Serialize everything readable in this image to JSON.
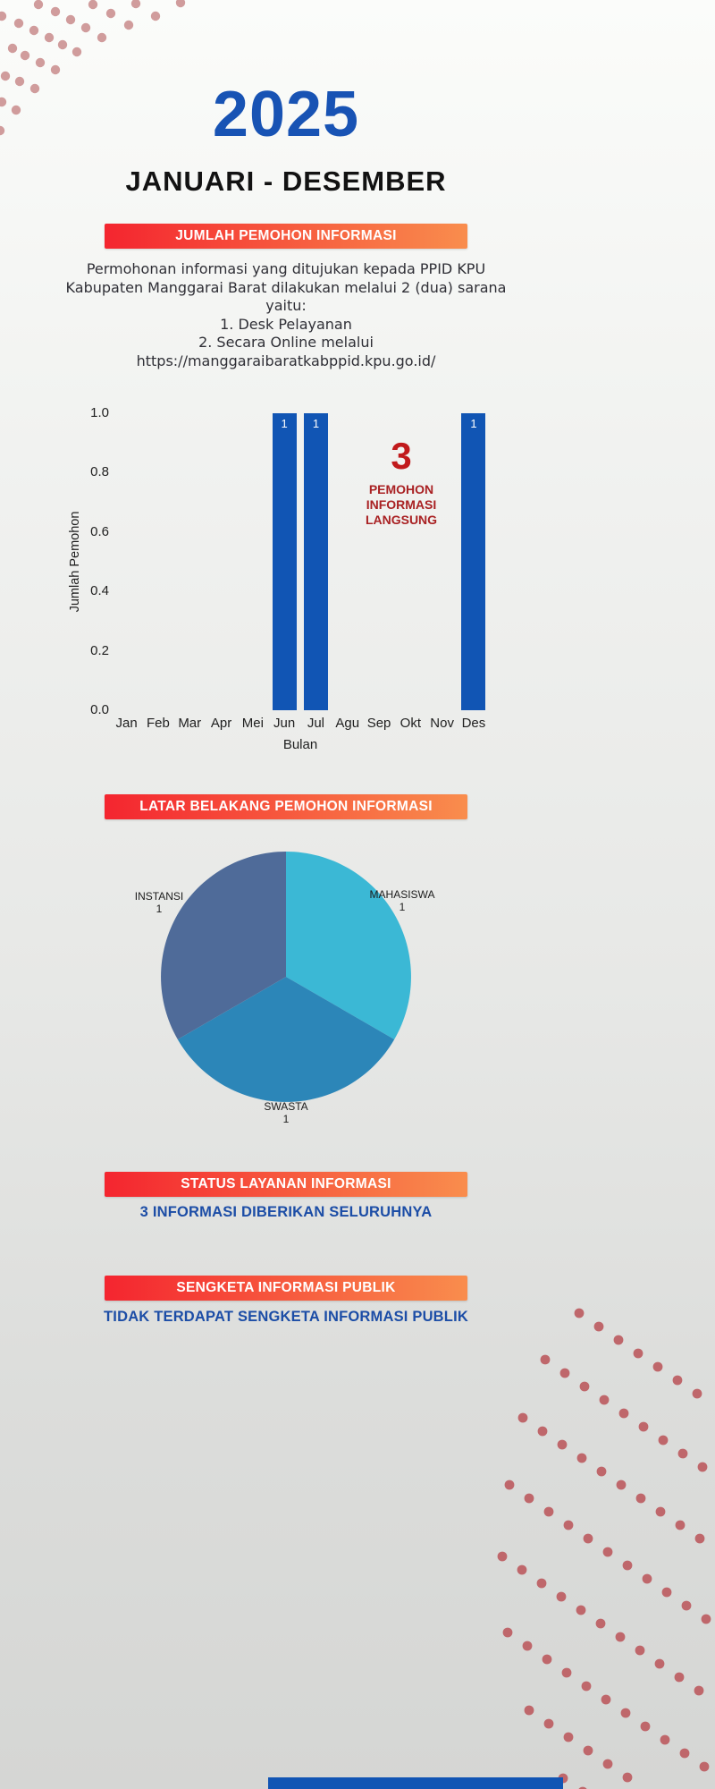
{
  "title": {
    "year": "2025",
    "period": "JANUARI - DESEMBER"
  },
  "colors": {
    "year_blue": "#1853b4",
    "banner_gradient_left": "#f4252f",
    "banner_gradient_right": "#f98d4d",
    "bar_blue": "#1155b4",
    "accent_red": "#c11a1c",
    "dark_red": "#a92123",
    "status_blue": "#1c4da6",
    "dot_pink_top": "#d09c9c",
    "dot_pink_bottom": "#bf676b"
  },
  "sections": {
    "jumlah_pemohon": {
      "banner": "JUMLAH PEMOHON INFORMASI",
      "description_lines": [
        "Permohonan informasi yang ditujukan kepada PPID KPU",
        "Kabupaten Manggarai Barat dilakukan melalui 2 (dua) sarana",
        "yaitu:",
        "1. Desk Pelayanan",
        "2. Secara Online melalui",
        "https://manggaraibaratkabppid.kpu.go.id/"
      ]
    },
    "latar_belakang": {
      "banner": "LATAR BELAKANG PEMOHON INFORMASI"
    },
    "status_layanan": {
      "banner": "STATUS LAYANAN INFORMASI",
      "status_text": "3 INFORMASI DIBERIKAN SELURUHNYA"
    },
    "sengketa": {
      "banner": "SENGKETA INFORMASI PUBLIK",
      "status_text": "TIDAK TERDAPAT SENGKETA INFORMASI PUBLIK"
    }
  },
  "chart_data": [
    {
      "type": "bar",
      "categories": [
        "Jan",
        "Feb",
        "Mar",
        "Apr",
        "Mei",
        "Jun",
        "Jul",
        "Agu",
        "Sep",
        "Okt",
        "Nov",
        "Des"
      ],
      "values": [
        0,
        0,
        0,
        0,
        0,
        1,
        1,
        0,
        0,
        0,
        0,
        1
      ],
      "title": "",
      "xlabel": "Bulan",
      "ylabel": "Jumlah Pemohon",
      "ylim": [
        0.0,
        1.0
      ],
      "yticks": [
        1.0,
        0.8,
        0.6,
        0.4,
        0.2,
        0.0
      ],
      "grid": false,
      "legend": false,
      "bar_color": "#1155b4",
      "bar_value_labels": [
        null,
        null,
        null,
        null,
        null,
        "1",
        "1",
        null,
        null,
        null,
        null,
        "1"
      ],
      "annotation": {
        "value": "3",
        "lines": [
          "PEMOHON",
          "INFORMASI",
          "LANGSUNG"
        ]
      }
    },
    {
      "type": "pie",
      "labels": [
        "MAHASISWA",
        "SWASTA",
        "INSTANSI"
      ],
      "values": [
        1,
        1,
        1
      ],
      "colors": [
        "#3bb8d5",
        "#2c86b8",
        "#4f6b99"
      ],
      "start_angle_deg": 0,
      "direction": "clockwise",
      "legend_position": "outside-labels"
    }
  ]
}
